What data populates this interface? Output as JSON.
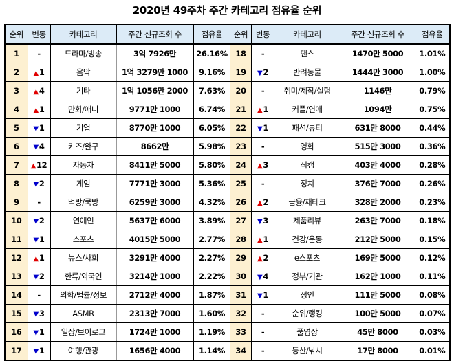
{
  "title": "2020년 49주차 주간 카테고리 점유율 순위",
  "headers": {
    "rank": "순위",
    "change": "변동",
    "category": "카테고리",
    "views": "주간 신규조회 수",
    "share": "점유율"
  },
  "colors": {
    "header_bg": "#dcebf7",
    "rank_bg": "#fdf0d1",
    "up": "#e00000",
    "down": "#0000cc"
  },
  "rows": [
    {
      "rank": "1",
      "dir": "none",
      "delta": "-",
      "category": "드라마/방송",
      "views": "3억 7926만",
      "share": "26.16%"
    },
    {
      "rank": "2",
      "dir": "up",
      "delta": "1",
      "category": "음악",
      "views": "1억 3279만 1000",
      "share": "9.16%"
    },
    {
      "rank": "3",
      "dir": "up",
      "delta": "4",
      "category": "기타",
      "views": "1억 1056만 2000",
      "share": "7.63%"
    },
    {
      "rank": "4",
      "dir": "up",
      "delta": "1",
      "category": "만화/애니",
      "views": "9771만 1000",
      "share": "6.74%"
    },
    {
      "rank": "5",
      "dir": "down",
      "delta": "1",
      "category": "기업",
      "views": "8770만 1000",
      "share": "6.05%"
    },
    {
      "rank": "6",
      "dir": "down",
      "delta": "4",
      "category": "키즈/완구",
      "views": "8662만",
      "share": "5.98%"
    },
    {
      "rank": "7",
      "dir": "up",
      "delta": "12",
      "category": "자동차",
      "views": "8411만 5000",
      "share": "5.80%"
    },
    {
      "rank": "8",
      "dir": "down",
      "delta": "2",
      "category": "게임",
      "views": "7771만 3000",
      "share": "5.36%"
    },
    {
      "rank": "9",
      "dir": "none",
      "delta": "-",
      "category": "먹방/쿡방",
      "views": "6259만 3000",
      "share": "4.32%"
    },
    {
      "rank": "10",
      "dir": "down",
      "delta": "2",
      "category": "연예인",
      "views": "5637만 6000",
      "share": "3.89%"
    },
    {
      "rank": "11",
      "dir": "down",
      "delta": "1",
      "category": "스포츠",
      "views": "4015만 5000",
      "share": "2.77%"
    },
    {
      "rank": "12",
      "dir": "up",
      "delta": "1",
      "category": "뉴스/사회",
      "views": "3291만 4000",
      "share": "2.27%"
    },
    {
      "rank": "13",
      "dir": "down",
      "delta": "2",
      "category": "한류/외국인",
      "views": "3214만 1000",
      "share": "2.22%"
    },
    {
      "rank": "14",
      "dir": "none",
      "delta": "-",
      "category": "의학/법률/정보",
      "views": "2712만 4000",
      "share": "1.87%"
    },
    {
      "rank": "15",
      "dir": "down",
      "delta": "3",
      "category": "ASMR",
      "views": "2313만 7000",
      "share": "1.60%"
    },
    {
      "rank": "16",
      "dir": "down",
      "delta": "1",
      "category": "일상/브이로그",
      "views": "1724만 1000",
      "share": "1.19%"
    },
    {
      "rank": "17",
      "dir": "down",
      "delta": "1",
      "category": "여행/관광",
      "views": "1656만 4000",
      "share": "1.14%"
    },
    {
      "rank": "18",
      "dir": "none",
      "delta": "-",
      "category": "댄스",
      "views": "1470만 5000",
      "share": "1.01%"
    },
    {
      "rank": "19",
      "dir": "down",
      "delta": "2",
      "category": "반려동물",
      "views": "1444만 3000",
      "share": "1.00%"
    },
    {
      "rank": "20",
      "dir": "none",
      "delta": "-",
      "category": "취미/제작/실험",
      "views": "1146만",
      "share": "0.79%"
    },
    {
      "rank": "21",
      "dir": "up",
      "delta": "1",
      "category": "커플/연애",
      "views": "1094만",
      "share": "0.75%"
    },
    {
      "rank": "22",
      "dir": "down",
      "delta": "1",
      "category": "패션/뷰티",
      "views": "631만 8000",
      "share": "0.44%"
    },
    {
      "rank": "23",
      "dir": "none",
      "delta": "-",
      "category": "영화",
      "views": "515만 3000",
      "share": "0.36%"
    },
    {
      "rank": "24",
      "dir": "up",
      "delta": "3",
      "category": "직캠",
      "views": "403만 4000",
      "share": "0.28%"
    },
    {
      "rank": "25",
      "dir": "none",
      "delta": "-",
      "category": "정치",
      "views": "376만 7000",
      "share": "0.26%"
    },
    {
      "rank": "26",
      "dir": "up",
      "delta": "2",
      "category": "금융/재테크",
      "views": "328만 2000",
      "share": "0.23%"
    },
    {
      "rank": "27",
      "dir": "down",
      "delta": "3",
      "category": "제품리뷰",
      "views": "263만 7000",
      "share": "0.18%"
    },
    {
      "rank": "28",
      "dir": "up",
      "delta": "1",
      "category": "건강/운동",
      "views": "212만 5000",
      "share": "0.15%"
    },
    {
      "rank": "29",
      "dir": "up",
      "delta": "2",
      "category": "e스포츠",
      "views": "169만 5000",
      "share": "0.12%"
    },
    {
      "rank": "30",
      "dir": "down",
      "delta": "4",
      "category": "정부/기관",
      "views": "162만 1000",
      "share": "0.11%"
    },
    {
      "rank": "31",
      "dir": "down",
      "delta": "1",
      "category": "성인",
      "views": "111만 5000",
      "share": "0.08%"
    },
    {
      "rank": "32",
      "dir": "none",
      "delta": "-",
      "category": "순위/랭킹",
      "views": "100만 5000",
      "share": "0.07%"
    },
    {
      "rank": "33",
      "dir": "none",
      "delta": "-",
      "category": "풀영상",
      "views": "45만 8000",
      "share": "0.03%"
    },
    {
      "rank": "34",
      "dir": "none",
      "delta": "-",
      "category": "등산/낚시",
      "views": "17만 8000",
      "share": "0.01%"
    }
  ],
  "icons": {
    "up": "▲",
    "down": "▼"
  }
}
